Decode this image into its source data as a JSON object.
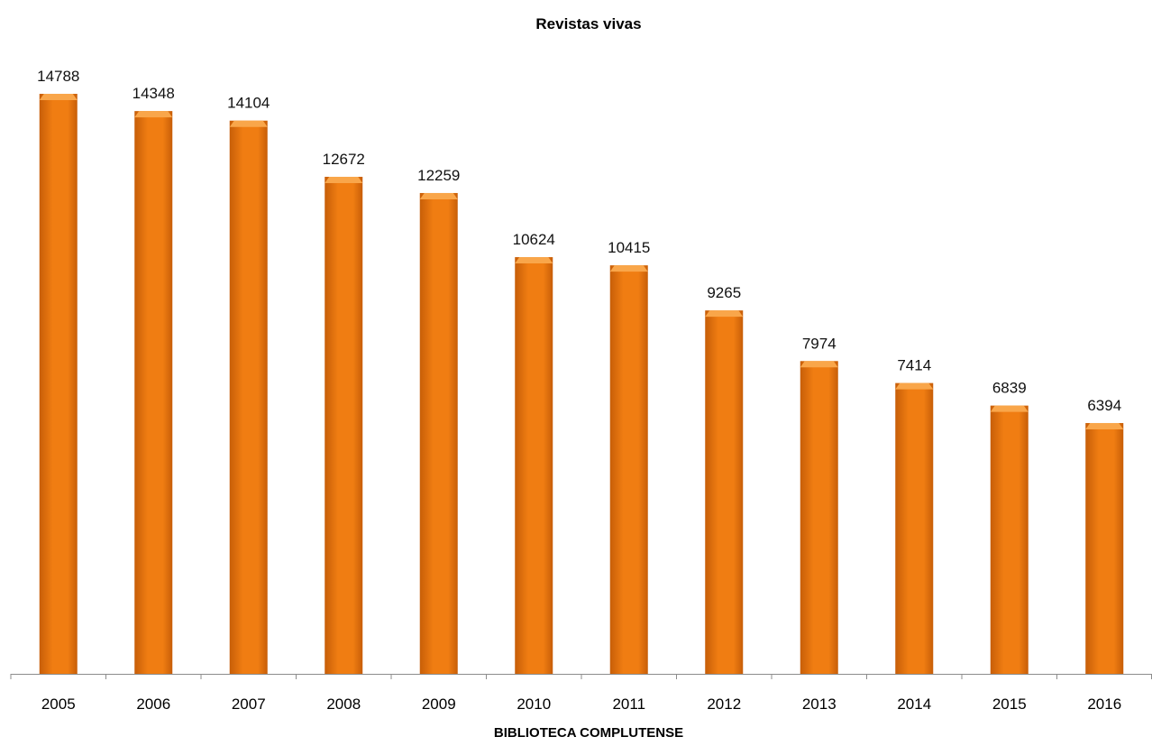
{
  "chart_data": {
    "type": "bar",
    "title": "Revistas vivas",
    "xlabel": "BIBLIOTECA COMPLUTENSE",
    "ylabel": "",
    "categories": [
      "2005",
      "2006",
      "2007",
      "2008",
      "2009",
      "2010",
      "2011",
      "2012",
      "2013",
      "2014",
      "2015",
      "2016"
    ],
    "series": [
      {
        "values": [
          14788,
          14348,
          14104,
          12672,
          12259,
          10624,
          10415,
          9265,
          7974,
          7414,
          6839,
          6394
        ]
      }
    ],
    "ylim": [
      0,
      14788
    ],
    "grid": false,
    "legend": "none",
    "bar_color": "#F07D12",
    "bar_highlight_color": "#F9A64A",
    "bar_shadow_color": "#C75E08",
    "axis_color": "#8C8C8C"
  }
}
